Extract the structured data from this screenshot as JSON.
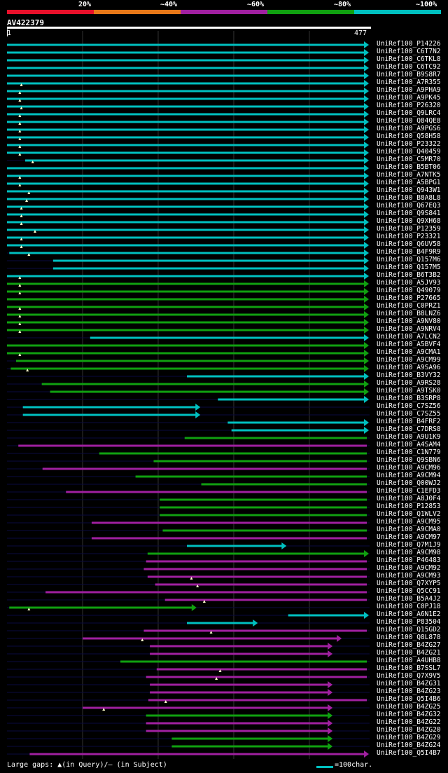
{
  "legend": {
    "labels": [
      "20%",
      "~40%",
      "~60%",
      "~80%",
      "~100%"
    ],
    "colors": [
      "#e8102a",
      "#e87818",
      "#a020a0",
      "#10a010",
      "#00c0c0"
    ]
  },
  "query": {
    "id": "AV422379",
    "start": "1",
    "end": "477",
    "length": 477
  },
  "footer": {
    "gaps_text": "Large gaps: ▲(in Query)/– (in Subject)",
    "scale_text": "=100char."
  },
  "chart_data": {
    "type": "alignment",
    "query_length": 477,
    "hits": [
      {
        "name": "UniRef100_P14226",
        "start": 1,
        "end": 477,
        "identity": "~100%",
        "end_arrow": true,
        "gap_marks": []
      },
      {
        "name": "UniRef100_C6T7N2",
        "start": 1,
        "end": 477,
        "identity": "~100%",
        "end_arrow": true,
        "gap_marks": []
      },
      {
        "name": "UniRef100_C6TKL8",
        "start": 1,
        "end": 477,
        "identity": "~100%",
        "end_arrow": true,
        "gap_marks": []
      },
      {
        "name": "UniRef100_C6TC92",
        "start": 1,
        "end": 477,
        "identity": "~100%",
        "end_arrow": true,
        "gap_marks": []
      },
      {
        "name": "UniRef100_B9S8R7",
        "start": 1,
        "end": 477,
        "identity": "~100%",
        "end_arrow": true,
        "gap_marks": []
      },
      {
        "name": "UniRef100_A7R355",
        "start": 1,
        "end": 477,
        "identity": "~100%",
        "end_arrow": true,
        "gap_marks": [
          20
        ]
      },
      {
        "name": "UniRef100_A9PHA9",
        "start": 1,
        "end": 477,
        "identity": "~100%",
        "end_arrow": true,
        "gap_marks": [
          18
        ]
      },
      {
        "name": "UniRef100_A9PK45",
        "start": 1,
        "end": 477,
        "identity": "~100%",
        "end_arrow": true,
        "gap_marks": [
          18
        ]
      },
      {
        "name": "UniRef100_P26320",
        "start": 1,
        "end": 477,
        "identity": "~100%",
        "end_arrow": true,
        "gap_marks": [
          20
        ]
      },
      {
        "name": "UniRef100_Q9LRC4",
        "start": 1,
        "end": 477,
        "identity": "~100%",
        "end_arrow": true,
        "gap_marks": [
          18
        ]
      },
      {
        "name": "UniRef100_Q84QE8",
        "start": 1,
        "end": 477,
        "identity": "~100%",
        "end_arrow": true,
        "gap_marks": [
          18
        ]
      },
      {
        "name": "UniRef100_A9PGS6",
        "start": 1,
        "end": 477,
        "identity": "~100%",
        "end_arrow": true,
        "gap_marks": [
          18
        ]
      },
      {
        "name": "UniRef100_Q58H58",
        "start": 1,
        "end": 477,
        "identity": "~100%",
        "end_arrow": true,
        "gap_marks": [
          18
        ]
      },
      {
        "name": "UniRef100_P23322",
        "start": 1,
        "end": 477,
        "identity": "~100%",
        "end_arrow": true,
        "gap_marks": [
          18
        ]
      },
      {
        "name": "UniRef100_Q40459",
        "start": 1,
        "end": 477,
        "identity": "~100%",
        "end_arrow": true,
        "gap_marks": [
          18
        ]
      },
      {
        "name": "UniRef100_C5MR70",
        "start": 25,
        "end": 477,
        "identity": "~100%",
        "end_arrow": true,
        "gap_marks": [
          35
        ]
      },
      {
        "name": "UniRef100_B5BT06",
        "start": 1,
        "end": 477,
        "identity": "~100%",
        "end_arrow": true,
        "gap_marks": []
      },
      {
        "name": "UniRef100_A7NTK5",
        "start": 1,
        "end": 477,
        "identity": "~100%",
        "end_arrow": true,
        "gap_marks": [
          18
        ]
      },
      {
        "name": "UniRef100_A5BPG1",
        "start": 1,
        "end": 477,
        "identity": "~100%",
        "end_arrow": true,
        "gap_marks": [
          18
        ]
      },
      {
        "name": "UniRef100_Q943W1",
        "start": 1,
        "end": 477,
        "identity": "~100%",
        "end_arrow": true,
        "gap_marks": [
          30
        ]
      },
      {
        "name": "UniRef100_B8A8L8",
        "start": 1,
        "end": 477,
        "identity": "~100%",
        "end_arrow": true,
        "gap_marks": [
          27
        ]
      },
      {
        "name": "UniRef100_Q67EQ3",
        "start": 1,
        "end": 477,
        "identity": "~100%",
        "end_arrow": true,
        "gap_marks": [
          20
        ]
      },
      {
        "name": "UniRef100_Q9S841",
        "start": 1,
        "end": 477,
        "identity": "~100%",
        "end_arrow": true,
        "gap_marks": [
          20
        ]
      },
      {
        "name": "UniRef100_Q9XH68",
        "start": 1,
        "end": 477,
        "identity": "~100%",
        "end_arrow": true,
        "gap_marks": [
          20
        ]
      },
      {
        "name": "UniRef100_P12359",
        "start": 1,
        "end": 477,
        "identity": "~100%",
        "end_arrow": true,
        "gap_marks": [
          38
        ]
      },
      {
        "name": "UniRef100_P23321",
        "start": 1,
        "end": 477,
        "identity": "~100%",
        "end_arrow": true,
        "gap_marks": [
          20
        ]
      },
      {
        "name": "UniRef100_Q6UV58",
        "start": 1,
        "end": 477,
        "identity": "~100%",
        "end_arrow": true,
        "gap_marks": [
          20
        ]
      },
      {
        "name": "UniRef100_B4F9R9",
        "start": 4,
        "end": 477,
        "identity": "~100%",
        "end_arrow": true,
        "gap_marks": [
          30
        ]
      },
      {
        "name": "UniRef100_Q157M6",
        "start": 62,
        "end": 477,
        "identity": "~100%",
        "end_arrow": true,
        "gap_marks": []
      },
      {
        "name": "UniRef100_Q157M5",
        "start": 62,
        "end": 477,
        "identity": "~100%",
        "end_arrow": true,
        "gap_marks": []
      },
      {
        "name": "UniRef100_B6T3B2",
        "start": 1,
        "end": 477,
        "identity": "~100%",
        "end_arrow": true,
        "gap_marks": [
          18
        ]
      },
      {
        "name": "UniRef100_A5JV93",
        "start": 1,
        "end": 477,
        "identity": "~80%",
        "end_arrow": true,
        "gap_marks": [
          18
        ]
      },
      {
        "name": "UniRef100_Q49079",
        "start": 1,
        "end": 477,
        "identity": "~80%",
        "end_arrow": true,
        "gap_marks": [
          18
        ]
      },
      {
        "name": "UniRef100_P27665",
        "start": 1,
        "end": 477,
        "identity": "~80%",
        "end_arrow": true,
        "gap_marks": []
      },
      {
        "name": "UniRef100_C0PRZ1",
        "start": 1,
        "end": 477,
        "identity": "~80%",
        "end_arrow": true,
        "gap_marks": [
          18
        ]
      },
      {
        "name": "UniRef100_B8LNZ6",
        "start": 1,
        "end": 477,
        "identity": "~80%",
        "end_arrow": true,
        "gap_marks": [
          18
        ]
      },
      {
        "name": "UniRef100_A9NV80",
        "start": 1,
        "end": 477,
        "identity": "~80%",
        "end_arrow": true,
        "gap_marks": [
          18
        ]
      },
      {
        "name": "UniRef100_A9NRV4",
        "start": 1,
        "end": 477,
        "identity": "~80%",
        "end_arrow": true,
        "gap_marks": [
          18
        ]
      },
      {
        "name": "UniRef100_A7LCN2",
        "start": 111,
        "end": 477,
        "identity": "~100%",
        "end_arrow": true,
        "gap_marks": []
      },
      {
        "name": "UniRef100_A5BVF4",
        "start": 1,
        "end": 477,
        "identity": "~80%",
        "end_arrow": true,
        "gap_marks": []
      },
      {
        "name": "UniRef100_A9CMA1",
        "start": 1,
        "end": 477,
        "identity": "~80%",
        "end_arrow": true,
        "gap_marks": [
          18
        ]
      },
      {
        "name": "UniRef100_A9CM99",
        "start": 13,
        "end": 477,
        "identity": "~80%",
        "end_arrow": true,
        "gap_marks": []
      },
      {
        "name": "UniRef100_A9SA96",
        "start": 6,
        "end": 477,
        "identity": "~80%",
        "end_arrow": true,
        "gap_marks": [
          28
        ]
      },
      {
        "name": "UniRef100_B3VY32",
        "start": 239,
        "end": 477,
        "identity": "~100%",
        "end_arrow": true,
        "gap_marks": []
      },
      {
        "name": "UniRef100_A9RS28",
        "start": 47,
        "end": 477,
        "identity": "~80%",
        "end_arrow": true,
        "gap_marks": []
      },
      {
        "name": "UniRef100_A9TSK0",
        "start": 58,
        "end": 477,
        "identity": "~80%",
        "end_arrow": true,
        "gap_marks": []
      },
      {
        "name": "UniRef100_B3SRP8",
        "start": 280,
        "end": 477,
        "identity": "~100%",
        "end_arrow": true,
        "gap_marks": []
      },
      {
        "name": "UniRef100_C7SZ56",
        "start": 22,
        "end": 254,
        "identity": "~100%",
        "end_arrow": true,
        "gap_marks": []
      },
      {
        "name": "UniRef100_C7SZ55",
        "start": 22,
        "end": 254,
        "identity": "~100%",
        "end_arrow": true,
        "gap_marks": []
      },
      {
        "name": "UniRef100_B4FRF2",
        "start": 293,
        "end": 477,
        "identity": "~100%",
        "end_arrow": true,
        "gap_marks": []
      },
      {
        "name": "UniRef100_C7DRS8",
        "start": 298,
        "end": 477,
        "identity": "~100%",
        "end_arrow": true,
        "gap_marks": []
      },
      {
        "name": "UniRef100_A9U1K9",
        "start": 236,
        "end": 477,
        "identity": "~80%",
        "end_arrow": false,
        "gap_marks": []
      },
      {
        "name": "UniRef100_A4SAM4",
        "start": 16,
        "end": 477,
        "identity": "~60%",
        "end_arrow": false,
        "gap_marks": []
      },
      {
        "name": "UniRef100_C1N779",
        "start": 123,
        "end": 477,
        "identity": "~80%",
        "end_arrow": false,
        "gap_marks": []
      },
      {
        "name": "UniRef100_Q9SBN6",
        "start": 195,
        "end": 477,
        "identity": "~80%",
        "end_arrow": false,
        "gap_marks": []
      },
      {
        "name": "UniRef100_A9CM96",
        "start": 48,
        "end": 477,
        "identity": "~60%",
        "end_arrow": false,
        "gap_marks": []
      },
      {
        "name": "UniRef100_A9CM94",
        "start": 171,
        "end": 477,
        "identity": "~80%",
        "end_arrow": false,
        "gap_marks": []
      },
      {
        "name": "UniRef100_Q00WJ2",
        "start": 258,
        "end": 477,
        "identity": "~80%",
        "end_arrow": false,
        "gap_marks": []
      },
      {
        "name": "UniRef100_C1EFD3",
        "start": 79,
        "end": 477,
        "identity": "~60%",
        "end_arrow": false,
        "gap_marks": []
      },
      {
        "name": "UniRef100_A8J0F4",
        "start": 203,
        "end": 477,
        "identity": "~80%",
        "end_arrow": false,
        "gap_marks": []
      },
      {
        "name": "UniRef100_P12853",
        "start": 203,
        "end": 477,
        "identity": "~80%",
        "end_arrow": false,
        "gap_marks": []
      },
      {
        "name": "UniRef100_Q1WLV2",
        "start": 203,
        "end": 477,
        "identity": "~80%",
        "end_arrow": false,
        "gap_marks": []
      },
      {
        "name": "UniRef100_A9CM95",
        "start": 113,
        "end": 477,
        "identity": "~60%",
        "end_arrow": false,
        "gap_marks": []
      },
      {
        "name": "UniRef100_A9CMA0",
        "start": 207,
        "end": 477,
        "identity": "~80%",
        "end_arrow": false,
        "gap_marks": []
      },
      {
        "name": "UniRef100_A9CM97",
        "start": 113,
        "end": 477,
        "identity": "~60%",
        "end_arrow": false,
        "gap_marks": []
      },
      {
        "name": "UniRef100_Q7M1J9",
        "start": 239,
        "end": 368,
        "identity": "~100%",
        "end_arrow": true,
        "gap_marks": []
      },
      {
        "name": "UniRef100_A9CM98",
        "start": 187,
        "end": 477,
        "identity": "~80%",
        "end_arrow": true,
        "gap_marks": []
      },
      {
        "name": "UniRef100_P46483",
        "start": 185,
        "end": 477,
        "identity": "~60%",
        "end_arrow": false,
        "gap_marks": []
      },
      {
        "name": "UniRef100_A9CM92",
        "start": 182,
        "end": 477,
        "identity": "~60%",
        "end_arrow": false,
        "gap_marks": []
      },
      {
        "name": "UniRef100_A9CM93",
        "start": 187,
        "end": 477,
        "identity": "~60%",
        "end_arrow": false,
        "gap_marks": [
          245
        ]
      },
      {
        "name": "UniRef100_Q7XYP5",
        "start": 197,
        "end": 477,
        "identity": "~60%",
        "end_arrow": false,
        "gap_marks": [
          253
        ]
      },
      {
        "name": "UniRef100_Q5CC91",
        "start": 52,
        "end": 477,
        "identity": "~60%",
        "end_arrow": false,
        "gap_marks": []
      },
      {
        "name": "UniRef100_B5A4J2",
        "start": 210,
        "end": 477,
        "identity": "~60%",
        "end_arrow": false,
        "gap_marks": [
          262
        ]
      },
      {
        "name": "UniRef100_C0PJ18",
        "start": 4,
        "end": 249,
        "identity": "~80%",
        "end_arrow": true,
        "gap_marks": [
          30
        ]
      },
      {
        "name": "UniRef100_A6N1E2",
        "start": 373,
        "end": 477,
        "identity": "~100%",
        "end_arrow": true,
        "gap_marks": []
      },
      {
        "name": "UniRef100_P83504",
        "start": 239,
        "end": 330,
        "identity": "~100%",
        "end_arrow": true,
        "gap_marks": []
      },
      {
        "name": "UniRef100_Q15GD2",
        "start": 182,
        "end": 477,
        "identity": "~60%",
        "end_arrow": false,
        "gap_marks": [
          271
        ]
      },
      {
        "name": "UniRef100_Q8L878",
        "start": 101,
        "end": 441,
        "identity": "~60%",
        "end_arrow": true,
        "gap_marks": [
          180
        ]
      },
      {
        "name": "UniRef100_B4ZG27",
        "start": 190,
        "end": 429,
        "identity": "~60%",
        "end_arrow": true,
        "gap_marks": []
      },
      {
        "name": "UniRef100_B4ZG21",
        "start": 190,
        "end": 429,
        "identity": "~60%",
        "end_arrow": true,
        "gap_marks": []
      },
      {
        "name": "UniRef100_A4UHB8",
        "start": 151,
        "end": 477,
        "identity": "~80%",
        "end_arrow": false,
        "gap_marks": []
      },
      {
        "name": "UniRef100_B7SSL7",
        "start": 199,
        "end": 477,
        "identity": "~60%",
        "end_arrow": false,
        "gap_marks": [
          283
        ]
      },
      {
        "name": "UniRef100_Q7X9V5",
        "start": 185,
        "end": 477,
        "identity": "~60%",
        "end_arrow": false,
        "gap_marks": [
          278
        ]
      },
      {
        "name": "UniRef100_B4ZG31",
        "start": 190,
        "end": 429,
        "identity": "~60%",
        "end_arrow": true,
        "gap_marks": []
      },
      {
        "name": "UniRef100_B4ZG23",
        "start": 190,
        "end": 429,
        "identity": "~60%",
        "end_arrow": true,
        "gap_marks": []
      },
      {
        "name": "UniRef100_Q5I4B6",
        "start": 188,
        "end": 477,
        "identity": "~60%",
        "end_arrow": false,
        "gap_marks": [
          211
        ]
      },
      {
        "name": "UniRef100_B4ZG25",
        "start": 101,
        "end": 429,
        "identity": "~60%",
        "end_arrow": true,
        "gap_marks": [
          129
        ]
      },
      {
        "name": "UniRef100_B4ZG32",
        "start": 185,
        "end": 429,
        "identity": "~80%",
        "end_arrow": true,
        "gap_marks": []
      },
      {
        "name": "UniRef100_B4ZG22",
        "start": 185,
        "end": 429,
        "identity": "~60%",
        "end_arrow": true,
        "gap_marks": []
      },
      {
        "name": "UniRef100_B4ZG20",
        "start": 185,
        "end": 429,
        "identity": "~60%",
        "end_arrow": true,
        "gap_marks": []
      },
      {
        "name": "UniRef100_B4ZG29",
        "start": 219,
        "end": 429,
        "identity": "~80%",
        "end_arrow": true,
        "gap_marks": []
      },
      {
        "name": "UniRef100_B4ZG24",
        "start": 219,
        "end": 429,
        "identity": "~80%",
        "end_arrow": true,
        "gap_marks": []
      },
      {
        "name": "UniRef100_Q5I4B7",
        "start": 31,
        "end": 477,
        "identity": "~60%",
        "end_arrow": true,
        "gap_marks": []
      }
    ]
  }
}
